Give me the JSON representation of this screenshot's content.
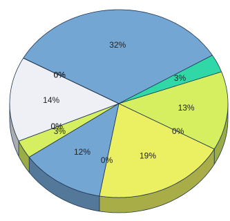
{
  "chart_data": {
    "type": "pie",
    "values": [
      32,
      3,
      13,
      0,
      19,
      0,
      12,
      3,
      0,
      0,
      14,
      0,
      0,
      0
    ],
    "value_labels": [
      "32%",
      "3%",
      "13%",
      "0%",
      "19%",
      "0%",
      "12%",
      "3%",
      "0%",
      "0%",
      "14%",
      "0%",
      "0%",
      "0%"
    ],
    "colors": [
      "#74a6d4",
      "#30d8a8",
      "#d6ef60",
      "#d6ef60",
      "#ebf062",
      "#ebf062",
      "#74a6d4",
      "#d6ef60",
      "#c6e050",
      "#d6ef60",
      "#eef0f6",
      "#ebf062",
      "#ffffff",
      "#2e5f96"
    ]
  }
}
